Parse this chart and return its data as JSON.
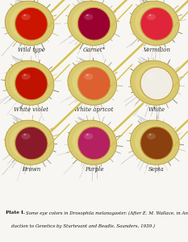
{
  "background_color": "#f8f6f2",
  "grid_rows": 3,
  "grid_cols": 3,
  "eyes": [
    {
      "label": "Wild type",
      "eye_color": "#cc1500"
    },
    {
      "label": "Garnet*",
      "eye_color": "#9a0030"
    },
    {
      "label": "Vermilion",
      "eye_color": "#e0253a"
    },
    {
      "label": "White violet",
      "eye_color": "#c01200"
    },
    {
      "label": "White apricot",
      "eye_color": "#dd6030"
    },
    {
      "label": "White",
      "eye_color": "#f0ede5"
    },
    {
      "label": "Brown",
      "eye_color": "#8a1a2a"
    },
    {
      "label": "Purple",
      "eye_color": "#b52060"
    },
    {
      "label": "Sepia",
      "eye_color": "#8b4010"
    }
  ],
  "body_fill": "#d8c870",
  "body_edge": "#b09a30",
  "eye_edge": "#c8a040",
  "bristle_color": "#aaa870",
  "dark_bristle": "#707050",
  "gray_bristle": "#aaaaaa",
  "spike_color": "#d4c050",
  "label_fontsize": 5.0,
  "caption_fontsize": 4.0,
  "caption_bold_fontsize": 4.2
}
